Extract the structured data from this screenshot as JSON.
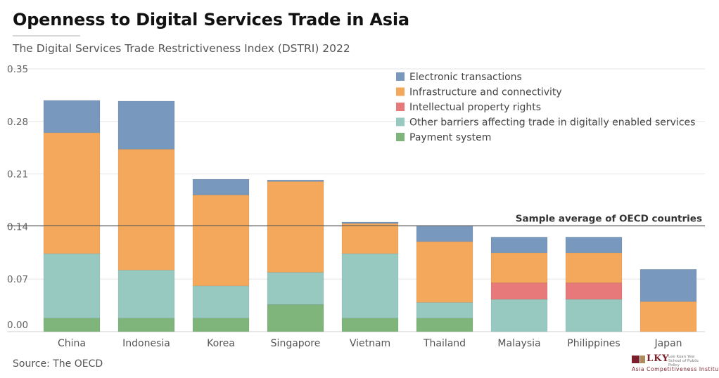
{
  "title": "Openness to Digital Services Trade in Asia",
  "subtitle": "The Digital Services Trade Restrictiveness Index (DSTRI) 2022",
  "source": "Source: The OECD",
  "logo": {
    "name": "LKY",
    "school": "Lee Kuan Yew School of Public Policy",
    "institute": "Asia Competitiveness Institute"
  },
  "chart_data": {
    "type": "bar",
    "stacked": true,
    "title": "Openness to Digital Services Trade in Asia",
    "subtitle": "The Digital Services Trade Restrictiveness Index (DSTRI) 2022",
    "xlabel": "",
    "ylabel": "",
    "ylim": [
      0,
      0.35
    ],
    "yticks": [
      "0.00",
      "0.07",
      "0.14",
      "0.21",
      "0.28",
      "0.35"
    ],
    "ytick_values": [
      0,
      0.07,
      0.14,
      0.21,
      0.28,
      0.35
    ],
    "grid": true,
    "legend_position": "top-right",
    "categories": [
      "China",
      "Indonesia",
      "Korea",
      "Singapore",
      "Vietnam",
      "Thailand",
      "Malaysia",
      "Philippines",
      "Japan"
    ],
    "series": [
      {
        "name": "Payment system",
        "color": "#7fb57a",
        "values": [
          0.018,
          0.018,
          0.018,
          0.036,
          0.018,
          0.018,
          0.0,
          0.0,
          0.0
        ]
      },
      {
        "name": "Other barriers affecting trade in digitally enabled services",
        "color": "#97c9c1",
        "values": [
          0.086,
          0.064,
          0.043,
          0.043,
          0.086,
          0.021,
          0.043,
          0.043,
          0.0
        ]
      },
      {
        "name": "Intellectual property rights",
        "color": "#e8797b",
        "values": [
          0.0,
          0.0,
          0.0,
          0.0,
          0.0,
          0.0,
          0.022,
          0.022,
          0.0
        ]
      },
      {
        "name": "Infrastructure and connectivity",
        "color": "#f4a85c",
        "values": [
          0.161,
          0.161,
          0.121,
          0.121,
          0.04,
          0.081,
          0.04,
          0.04,
          0.04
        ]
      },
      {
        "name": "Electronic transactions",
        "color": "#7898bd",
        "values": [
          0.043,
          0.064,
          0.021,
          0.002,
          0.002,
          0.021,
          0.021,
          0.021,
          0.043
        ]
      }
    ],
    "legend_order": [
      "Electronic transactions",
      "Infrastructure and connectivity",
      "Intellectual property rights",
      "Other barriers affecting trade in digitally enabled services",
      "Payment system"
    ],
    "reference_line": {
      "label": "Sample average of OECD countries",
      "value": 0.141,
      "color": "#555555"
    }
  }
}
